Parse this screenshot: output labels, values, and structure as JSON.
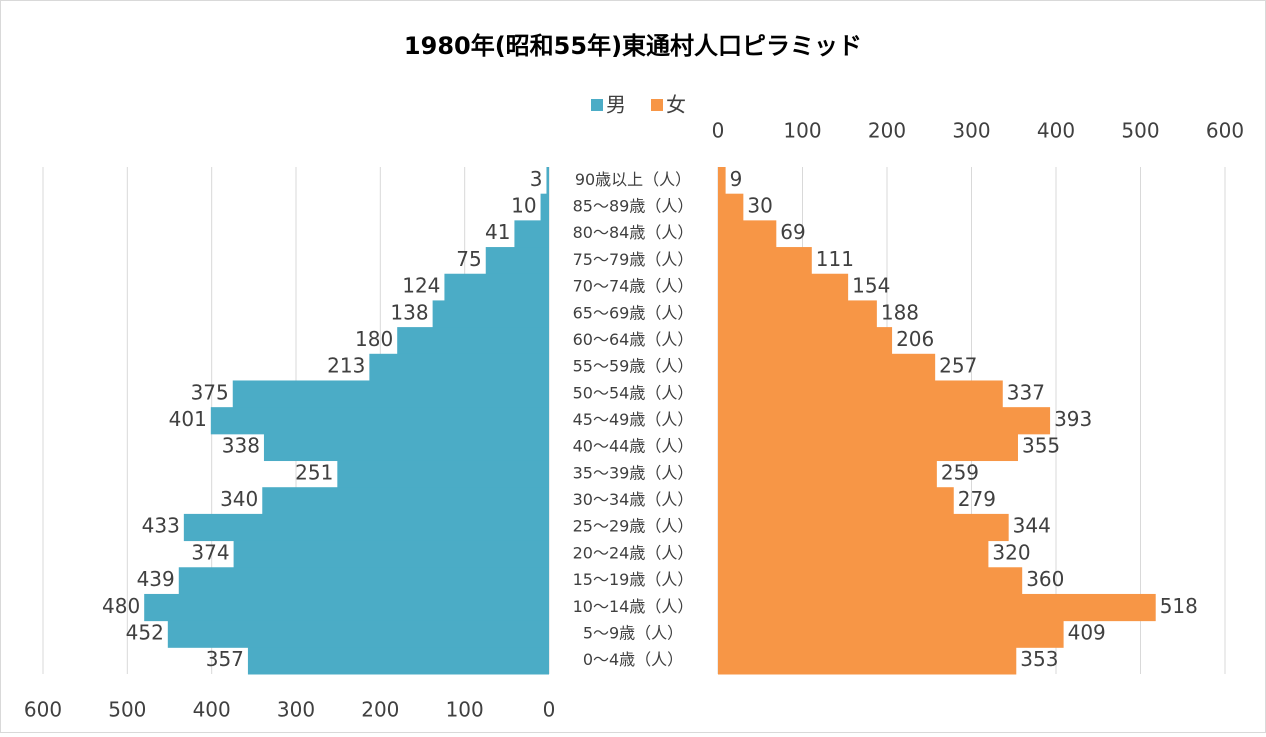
{
  "chart_data": {
    "type": "pyramid",
    "title": "1980年(昭和55年)東通村人口ピラミッド",
    "categories": [
      "90歳以上（人）",
      "85～89歳（人）",
      "80～84歳（人）",
      "75～79歳（人）",
      "70～74歳（人）",
      "65～69歳（人）",
      "60～64歳（人）",
      "55～59歳（人）",
      "50～54歳（人）",
      "45～49歳（人）",
      "40～44歳（人）",
      "35～39歳（人）",
      "30～34歳（人）",
      "25～29歳（人）",
      "20～24歳（人）",
      "15～19歳（人）",
      "10～14歳（人）",
      "5～9歳（人）",
      "0～4歳（人）"
    ],
    "series": [
      {
        "name": "男",
        "color": "#4bacc6",
        "values": [
          3,
          10,
          41,
          75,
          124,
          138,
          180,
          213,
          375,
          401,
          338,
          251,
          340,
          433,
          374,
          439,
          480,
          452,
          357
        ]
      },
      {
        "name": "女",
        "color": "#f79646",
        "values": [
          9,
          30,
          69,
          111,
          154,
          188,
          206,
          257,
          337,
          393,
          355,
          259,
          279,
          344,
          320,
          360,
          518,
          409,
          353
        ]
      }
    ],
    "xlim": [
      0,
      600
    ],
    "xticks": [
      0,
      100,
      200,
      300,
      400,
      500,
      600
    ],
    "grid": true
  }
}
